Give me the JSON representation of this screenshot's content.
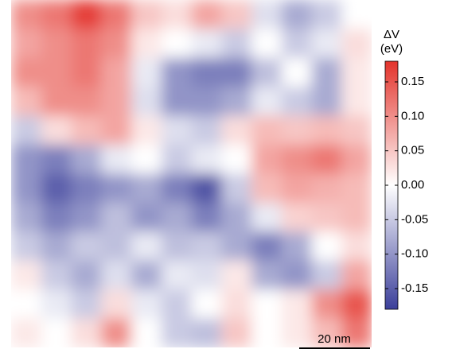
{
  "chart_data": {
    "type": "heatmap",
    "colorbar_title": "ΔV",
    "colorbar_unit": "(eV)",
    "scale_bar": "20 nm",
    "colorscale": [
      "#3b3f9a",
      "#ffffff",
      "#e3332b"
    ],
    "clim": [
      -0.18,
      0.18
    ],
    "cticks": [
      0.15,
      {
        "value": 0.1,
        "label": "0.10"
      },
      0.05,
      {
        "value": 0.0,
        "label": "0.00"
      },
      -0.05,
      {
        "value": -0.1,
        "label": "-0.10"
      },
      -0.15
    ],
    "z": [
      [
        0.1,
        0.12,
        0.17,
        0.12,
        0.05,
        0.03,
        0.08,
        0.05,
        -0.03,
        -0.08,
        -0.05,
        0.0
      ],
      [
        0.08,
        0.1,
        0.12,
        0.1,
        0.02,
        0.0,
        -0.02,
        -0.05,
        0.0,
        -0.05,
        -0.02,
        0.03
      ],
      [
        0.1,
        0.1,
        0.12,
        0.08,
        -0.02,
        -0.1,
        -0.12,
        -0.12,
        -0.06,
        0.0,
        -0.08,
        0.02
      ],
      [
        0.06,
        0.1,
        0.1,
        0.08,
        -0.03,
        -0.1,
        -0.1,
        -0.08,
        -0.02,
        -0.05,
        -0.08,
        0.02
      ],
      [
        -0.05,
        0.03,
        0.06,
        0.08,
        0.02,
        -0.03,
        -0.05,
        0.03,
        0.06,
        0.05,
        0.06,
        0.05
      ],
      [
        -0.1,
        -0.12,
        -0.08,
        -0.02,
        0.0,
        -0.05,
        -0.02,
        0.0,
        0.08,
        0.1,
        0.12,
        0.08
      ],
      [
        -0.1,
        -0.15,
        -0.12,
        -0.1,
        -0.08,
        -0.12,
        -0.16,
        -0.05,
        0.06,
        0.08,
        0.07,
        0.06
      ],
      [
        -0.08,
        -0.12,
        -0.1,
        -0.06,
        -0.1,
        -0.08,
        -0.12,
        -0.08,
        -0.02,
        0.04,
        0.05,
        0.06
      ],
      [
        -0.05,
        -0.08,
        -0.05,
        -0.06,
        -0.02,
        -0.06,
        -0.05,
        -0.08,
        -0.12,
        -0.08,
        0.0,
        0.03
      ],
      [
        0.02,
        -0.05,
        -0.08,
        -0.03,
        -0.08,
        -0.02,
        -0.03,
        0.02,
        -0.08,
        -0.1,
        -0.05,
        0.08
      ],
      [
        0.0,
        -0.02,
        -0.05,
        0.03,
        -0.02,
        -0.05,
        0.0,
        0.03,
        0.0,
        0.02,
        0.1,
        0.15
      ],
      [
        0.02,
        0.0,
        0.03,
        0.1,
        0.0,
        -0.05,
        -0.06,
        0.05,
        0.0,
        0.02,
        0.06,
        0.12
      ]
    ]
  }
}
